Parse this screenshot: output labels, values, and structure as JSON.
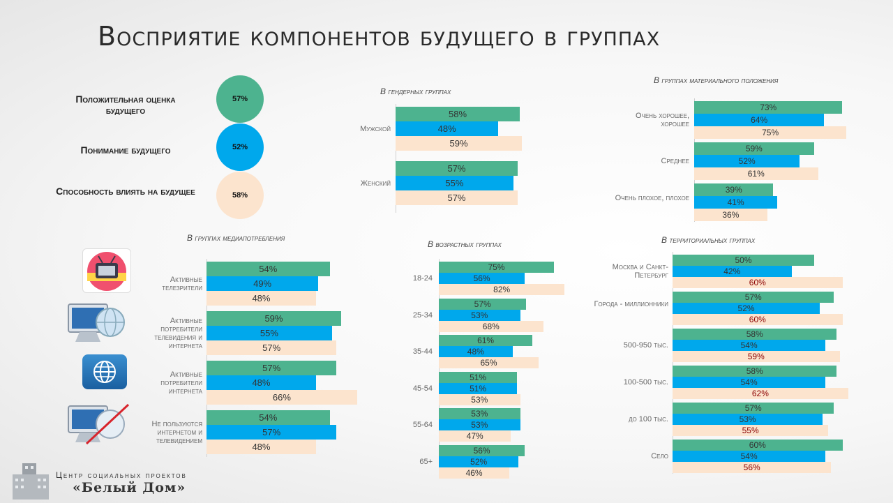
{
  "title": "Восприятие компонентов будущего в группах",
  "colors": {
    "positive": "#4DB38F",
    "understanding": "#00A8EC",
    "influence": "#FCE4CE",
    "highlight_red": "#8B0000"
  },
  "legend": [
    {
      "label": "Положительная оценка будущего",
      "value": "57%",
      "color": "#4DB38F"
    },
    {
      "label": "Понимание будущего",
      "value": "52%",
      "color": "#00A8EC"
    },
    {
      "label": "Способность влиять на будущее",
      "value": "58%",
      "color": "#FCE4CE"
    }
  ],
  "chart_data": [
    {
      "id": "gender",
      "type": "bar",
      "orientation": "horizontal",
      "title": "В гендерных группах",
      "categories": [
        "Мужской",
        "Женский"
      ],
      "series": [
        {
          "values": [
            58,
            57
          ]
        },
        {
          "values": [
            48,
            55
          ]
        },
        {
          "values": [
            59,
            57
          ]
        }
      ]
    },
    {
      "id": "wealth",
      "type": "bar",
      "orientation": "horizontal",
      "title": "В группах материального положения",
      "categories": [
        "Очень хорошее, хорошее",
        "Среднее",
        "Очень плохое, плохое"
      ],
      "series": [
        {
          "values": [
            73,
            59,
            39
          ]
        },
        {
          "values": [
            64,
            52,
            41
          ]
        },
        {
          "values": [
            75,
            61,
            36
          ]
        }
      ]
    },
    {
      "id": "media",
      "type": "bar",
      "orientation": "horizontal",
      "title": "В группах медиапотребления",
      "categories": [
        "Активные телезрители",
        "Активные потребители телевидения и интернета",
        "Активные потребители интернета",
        "Не пользуются интернетом и телевидением"
      ],
      "series": [
        {
          "values": [
            54,
            59,
            57,
            54
          ]
        },
        {
          "values": [
            49,
            55,
            48,
            57
          ]
        },
        {
          "values": [
            48,
            57,
            66,
            48
          ]
        }
      ]
    },
    {
      "id": "age",
      "type": "bar",
      "orientation": "horizontal",
      "title": "В возрастных группах",
      "categories": [
        "18-24",
        "25-34",
        "35-44",
        "45-54",
        "55-64",
        "65+"
      ],
      "series": [
        {
          "values": [
            75,
            57,
            61,
            51,
            53,
            56
          ]
        },
        {
          "values": [
            56,
            53,
            48,
            51,
            53,
            52
          ]
        },
        {
          "values": [
            82,
            68,
            65,
            53,
            47,
            46
          ]
        }
      ]
    },
    {
      "id": "territory",
      "type": "bar",
      "orientation": "horizontal",
      "title": "В территориальных группах",
      "categories": [
        "Москва и Санкт-Петербург",
        "Города - миллионники",
        "500-950 тыс.",
        "100-500 тыс.",
        "до 100 тыс.",
        "Село"
      ],
      "series": [
        {
          "values": [
            50,
            57,
            58,
            58,
            57,
            60
          ]
        },
        {
          "values": [
            42,
            52,
            54,
            54,
            53,
            54
          ]
        },
        {
          "values": [
            60,
            60,
            59,
            62,
            55,
            56
          ]
        }
      ]
    }
  ],
  "logo": {
    "line1": "Центр социальных проектов",
    "line2": "«Белый Дом»"
  }
}
